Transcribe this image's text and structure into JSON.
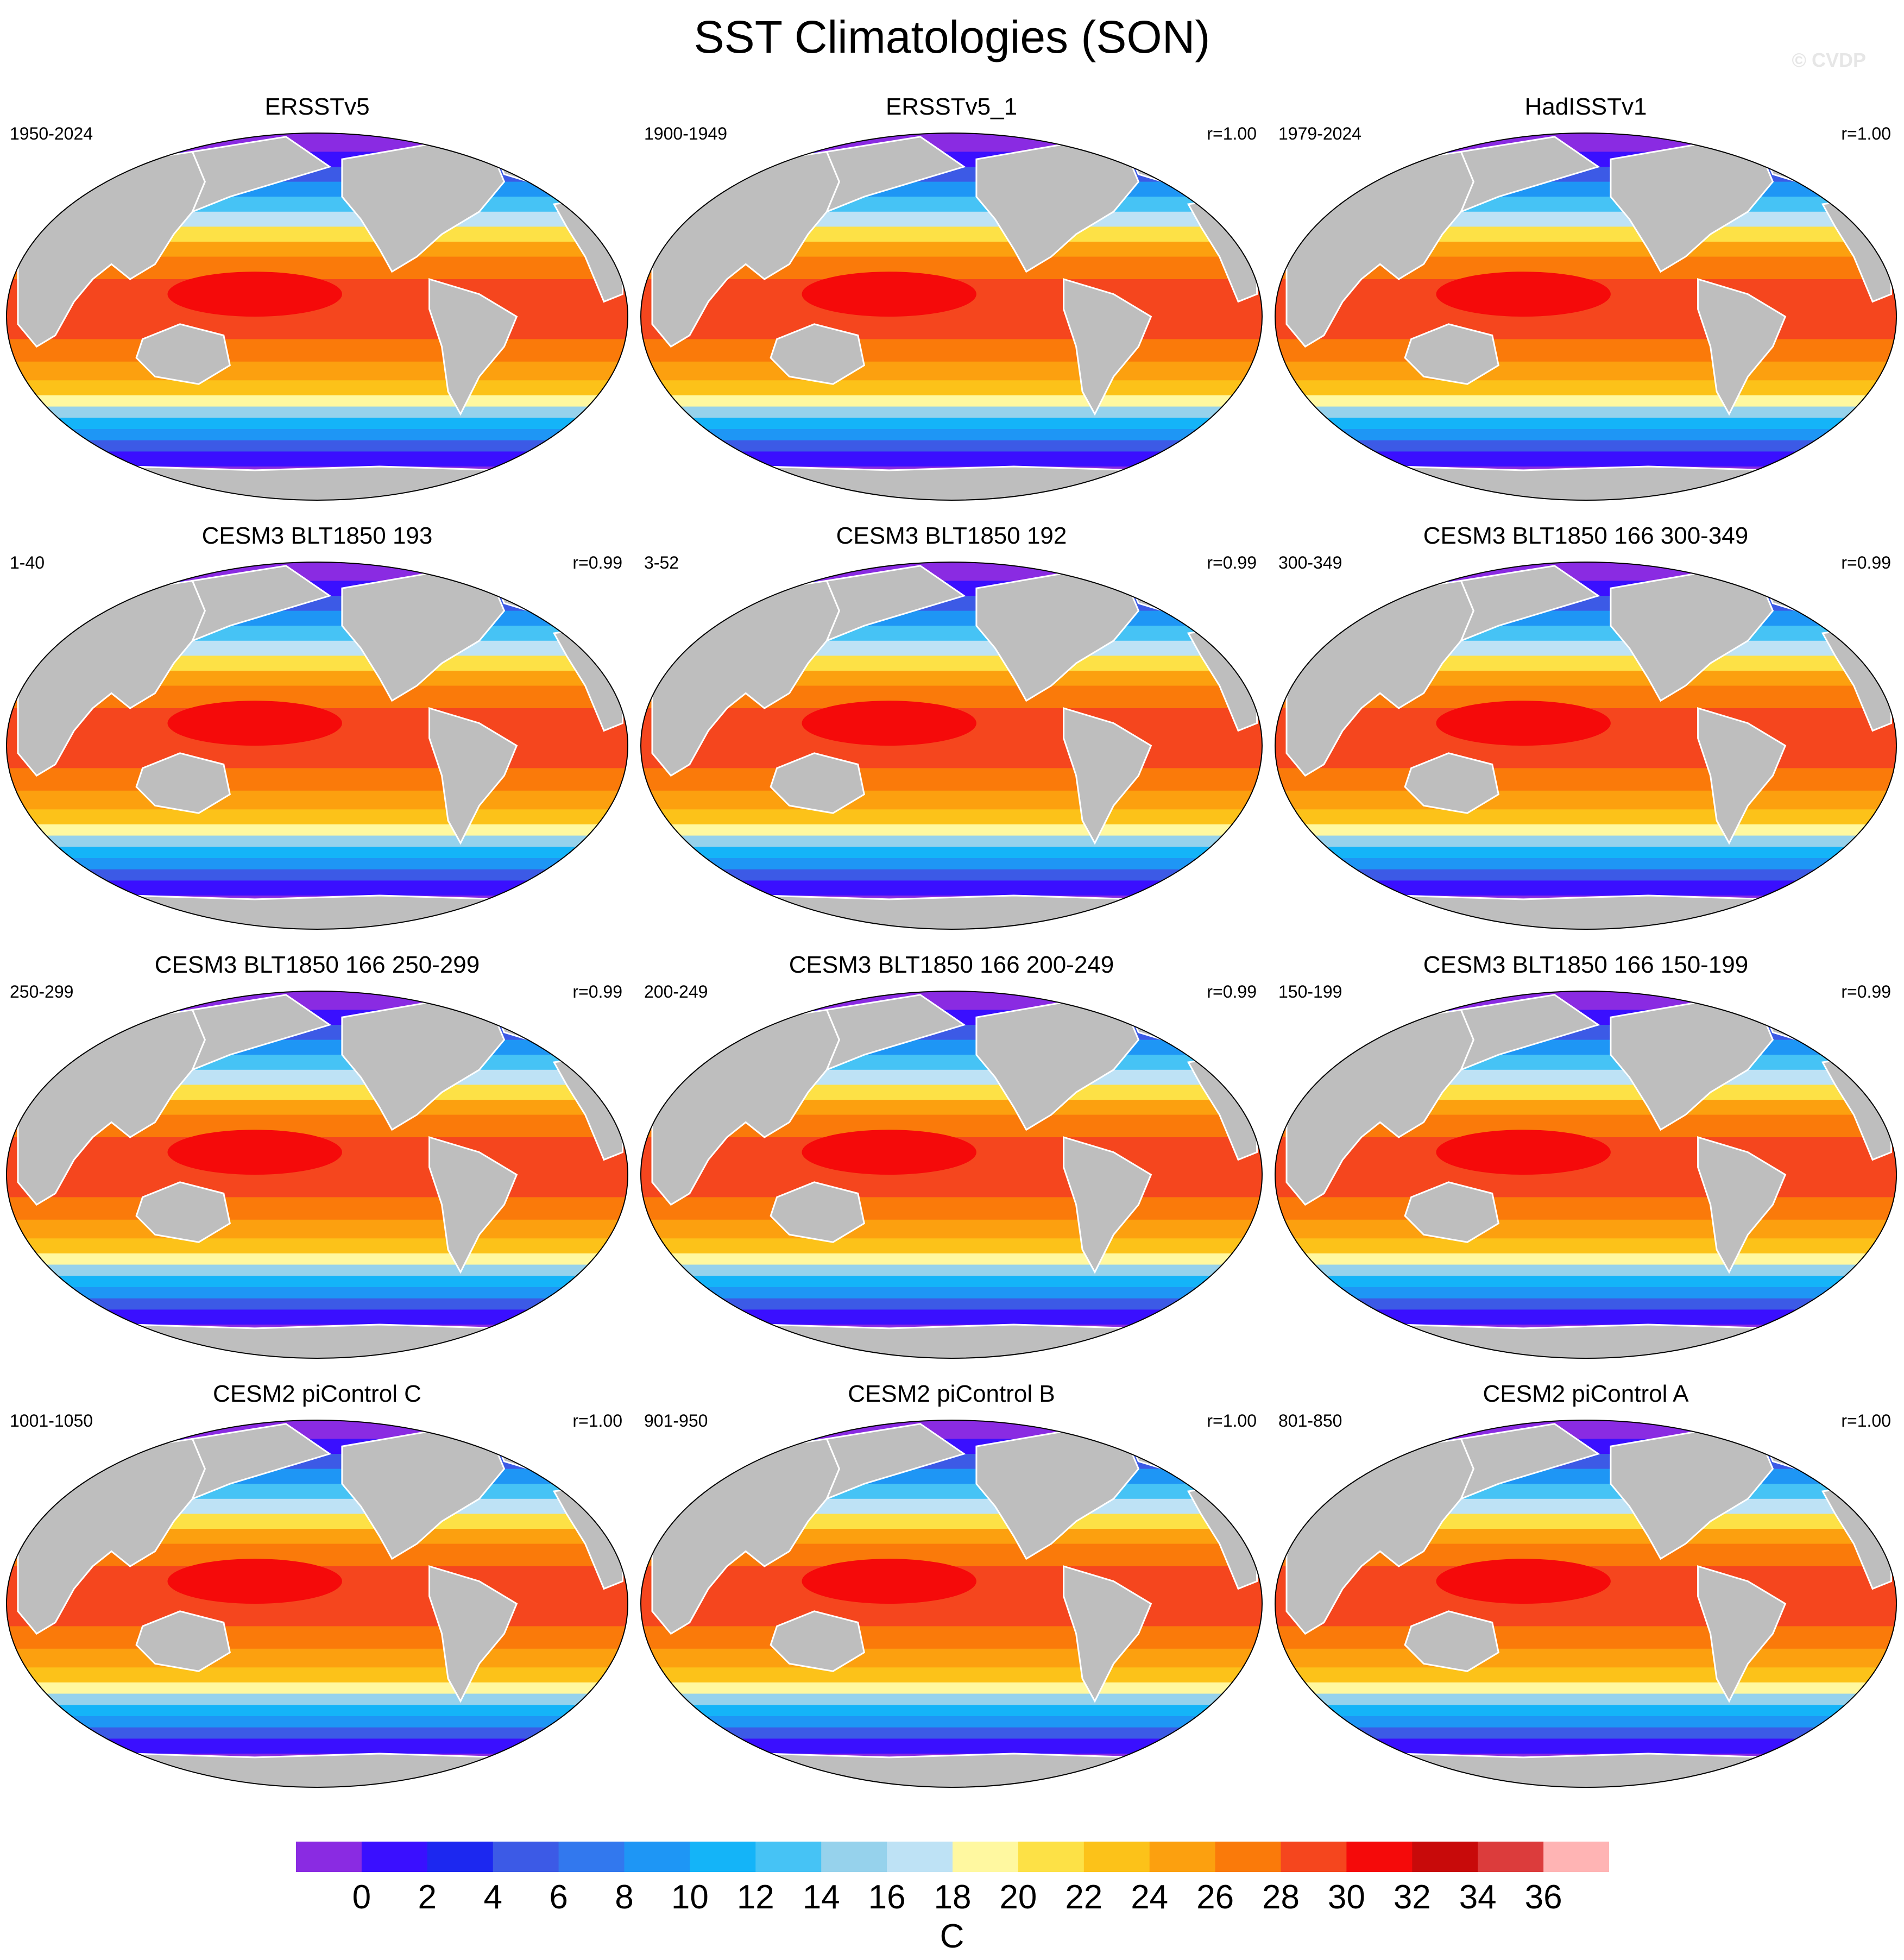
{
  "title": "SST Climatologies (SON)",
  "credit": "© CVDP",
  "panels": [
    {
      "title": "ERSSTv5",
      "years": "1950-2024",
      "r": ""
    },
    {
      "title": "ERSSTv5_1",
      "years": "1900-1949",
      "r": "r=1.00"
    },
    {
      "title": "HadISSTv1",
      "years": "1979-2024",
      "r": "r=1.00"
    },
    {
      "title": "CESM3 BLT1850 193",
      "years": "1-40",
      "r": "r=0.99"
    },
    {
      "title": "CESM3 BLT1850 192",
      "years": "3-52",
      "r": "r=0.99"
    },
    {
      "title": "CESM3 BLT1850 166 300-349",
      "years": "300-349",
      "r": "r=0.99"
    },
    {
      "title": "CESM3 BLT1850 166 250-299",
      "years": "250-299",
      "r": "r=0.99"
    },
    {
      "title": "CESM3 BLT1850 166 200-249",
      "years": "200-249",
      "r": "r=0.99"
    },
    {
      "title": "CESM3 BLT1850 166 150-199",
      "years": "150-199",
      "r": "r=0.99"
    },
    {
      "title": "CESM2 piControl C",
      "years": "1001-1050",
      "r": "r=1.00"
    },
    {
      "title": "CESM2 piControl B",
      "years": "901-950",
      "r": "r=1.00"
    },
    {
      "title": "CESM2 piControl A",
      "years": "801-850",
      "r": "r=1.00"
    }
  ],
  "colorbar": {
    "unit": "C",
    "labels": [
      "0",
      "2",
      "4",
      "6",
      "8",
      "10",
      "12",
      "14",
      "16",
      "18",
      "20",
      "22",
      "24",
      "26",
      "28",
      "30",
      "32",
      "34",
      "36"
    ],
    "colors": [
      "#8a2be2",
      "#3a0fff",
      "#1c28f0",
      "#3c5ae6",
      "#3278ee",
      "#1e96f5",
      "#14b4f8",
      "#46c3f5",
      "#96d2ec",
      "#bee2f5",
      "#fff8a0",
      "#fde146",
      "#fcc219",
      "#fca00f",
      "#fa7a0a",
      "#f5461e",
      "#f50a0a",
      "#c80a0a",
      "#dc3c3c",
      "#ffb4b4"
    ]
  },
  "colors": {
    "land": "#bebebe",
    "ocean_border": "#ffffff"
  }
}
